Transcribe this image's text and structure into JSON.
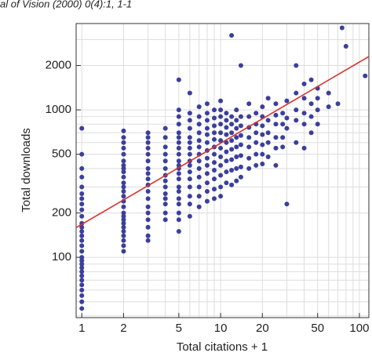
{
  "chart_data": {
    "type": "scatter",
    "header": "al of Vision (2000) 0(4):1, 1-1",
    "xlabel": "Total citations + 1",
    "ylabel": "Total downloads",
    "xlog": true,
    "ylog": true,
    "grid": true,
    "xlim": [
      0.91,
      117
    ],
    "ylim": [
      39,
      3850
    ],
    "xticks": [
      1,
      2,
      5,
      10,
      20,
      50,
      100
    ],
    "yticks": [
      100,
      200,
      500,
      1000,
      2000
    ],
    "xgrid": [
      1,
      2,
      3,
      4,
      5,
      6,
      7,
      8,
      9,
      10,
      20,
      30,
      40,
      50,
      60,
      70,
      80,
      90,
      100
    ],
    "ygrid": [
      40,
      50,
      60,
      70,
      80,
      90,
      100,
      200,
      300,
      400,
      500,
      600,
      700,
      800,
      900,
      1000,
      2000,
      3000
    ],
    "color": "#3b3f9c",
    "fit_line": {
      "x": [
        0.91,
        117
      ],
      "y": [
        159,
        2300
      ],
      "color": "#d9302c"
    },
    "columns": [
      {
        "x": 1,
        "y": [
          750,
          500,
          400,
          350,
          300,
          270,
          250,
          230,
          210,
          190,
          170,
          160,
          150,
          140,
          130,
          120,
          110,
          100,
          95,
          90,
          85,
          80,
          75,
          70,
          65,
          60,
          55,
          50,
          45
        ]
      },
      {
        "x": 2,
        "y": [
          720,
          650,
          600,
          550,
          500,
          450,
          420,
          400,
          380,
          350,
          320,
          300,
          280,
          260,
          240,
          220,
          200,
          190,
          180,
          170,
          160,
          150,
          140,
          130,
          120,
          110
        ]
      },
      {
        "x": 3,
        "y": [
          700,
          650,
          600,
          550,
          500,
          450,
          400,
          370,
          340,
          310,
          280,
          250,
          220,
          200,
          180,
          160,
          140,
          130
        ]
      },
      {
        "x": 4,
        "y": [
          750,
          650,
          560,
          500,
          450,
          400,
          360,
          330,
          300,
          270,
          250,
          230,
          200,
          180
        ]
      },
      {
        "x": 5,
        "y": [
          1600,
          1000,
          900,
          800,
          700,
          650,
          600,
          550,
          500,
          450,
          420,
          400,
          370,
          340,
          300,
          280,
          250,
          230,
          200,
          180,
          150
        ]
      },
      {
        "x": 6,
        "y": [
          1300,
          950,
          850,
          750,
          650,
          600,
          550,
          500,
          450,
          420,
          380,
          340,
          300,
          260,
          230,
          190
        ]
      },
      {
        "x": 7,
        "y": [
          1050,
          900,
          800,
          700,
          620,
          560,
          500,
          450,
          400,
          350,
          300,
          260,
          220
        ]
      },
      {
        "x": 8,
        "y": [
          1100,
          950,
          850,
          750,
          680,
          600,
          530,
          470,
          420,
          370,
          320,
          280,
          240
        ]
      },
      {
        "x": 9,
        "y": [
          1000,
          880,
          780,
          700,
          630,
          560,
          500,
          440,
          390,
          340,
          290,
          250
        ]
      },
      {
        "x": 10,
        "y": [
          1150,
          1000,
          900,
          800,
          700,
          620,
          550,
          480,
          420,
          360,
          300,
          260
        ]
      },
      {
        "x": 11,
        "y": [
          950,
          850,
          760,
          680,
          600,
          520,
          450,
          380,
          320
        ]
      },
      {
        "x": 12,
        "y": [
          3200,
          900,
          800,
          700,
          620,
          540,
          460,
          390,
          310
        ]
      },
      {
        "x": 13,
        "y": [
          1000,
          850,
          750,
          650,
          560,
          480,
          400,
          330
        ]
      },
      {
        "x": 14,
        "y": [
          2000,
          900,
          780,
          670,
          580,
          490,
          410,
          350
        ]
      },
      {
        "x": 16,
        "y": [
          1100,
          900,
          760,
          650,
          560,
          470,
          400
        ]
      },
      {
        "x": 18,
        "y": [
          950,
          800,
          700,
          600,
          500,
          420
        ]
      },
      {
        "x": 20,
        "y": [
          1050,
          900,
          780,
          680,
          580,
          500,
          430
        ]
      },
      {
        "x": 22,
        "y": [
          1200,
          850,
          700,
          600,
          480
        ]
      },
      {
        "x": 25,
        "y": [
          1100,
          920,
          800,
          650,
          550,
          420
        ]
      },
      {
        "x": 28,
        "y": [
          950,
          800,
          650,
          560
        ]
      },
      {
        "x": 30,
        "y": [
          1150,
          880,
          750,
          230
        ]
      },
      {
        "x": 35,
        "y": [
          2000,
          1300,
          1000,
          850,
          600
        ]
      },
      {
        "x": 40,
        "y": [
          1500,
          1200,
          950,
          800,
          550
        ]
      },
      {
        "x": 45,
        "y": [
          1600,
          1100,
          900,
          700
        ]
      },
      {
        "x": 50,
        "y": [
          1400,
          1000,
          800,
          1200
        ]
      },
      {
        "x": 60,
        "y": [
          1300,
          1050
        ]
      },
      {
        "x": 70,
        "y": [
          1100
        ]
      },
      {
        "x": 75,
        "y": [
          3600
        ]
      },
      {
        "x": 80,
        "y": [
          2700
        ]
      },
      {
        "x": 110,
        "y": [
          1700
        ]
      }
    ]
  }
}
